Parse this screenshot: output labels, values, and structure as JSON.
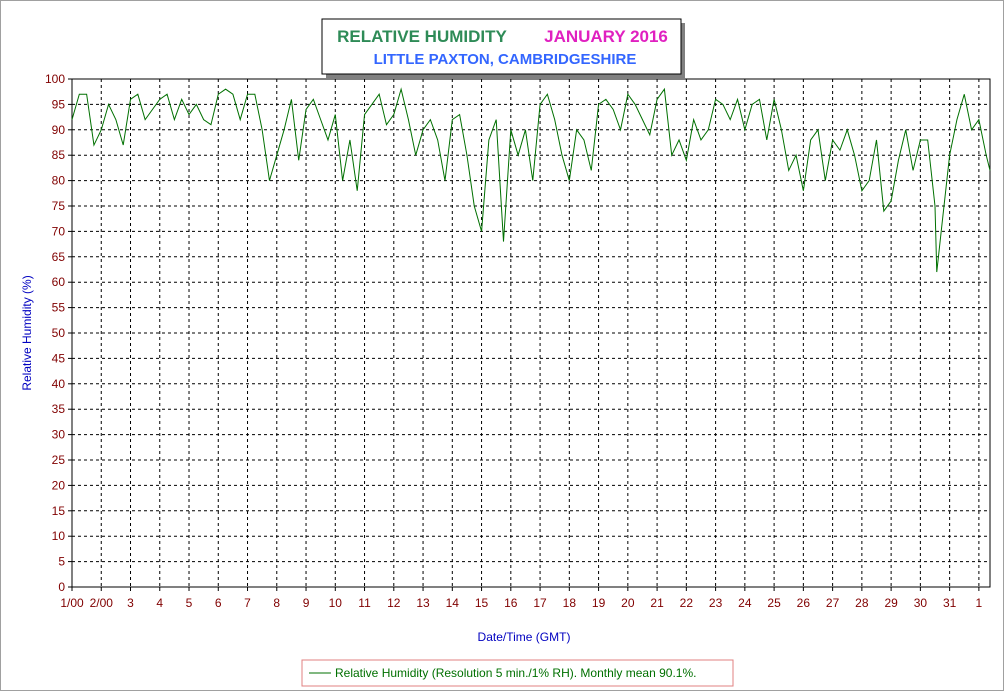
{
  "chart_data": {
    "type": "line",
    "title": "RELATIVE HUMIDITY",
    "title_period": "JANUARY 2016",
    "subtitle": "LITTLE PAXTON, CAMBRIDGESHIRE",
    "x_label": "Date/Time (GMT)",
    "y_label": "Relative Humidity (%)",
    "xlim": [
      1,
      32.38
    ],
    "ylim": [
      0,
      100
    ],
    "yticks": [
      0,
      5,
      10,
      15,
      20,
      25,
      30,
      35,
      40,
      45,
      50,
      55,
      60,
      65,
      70,
      75,
      80,
      85,
      90,
      95,
      100
    ],
    "xticks": [
      {
        "value": 1,
        "label": "1/00"
      },
      {
        "value": 2,
        "label": "2/00"
      },
      3,
      4,
      5,
      6,
      7,
      8,
      9,
      10,
      11,
      12,
      13,
      14,
      15,
      16,
      17,
      18,
      19,
      20,
      21,
      22,
      23,
      24,
      25,
      26,
      27,
      28,
      29,
      30,
      31,
      {
        "value": 32,
        "label": "1"
      }
    ],
    "grid": true,
    "x": [
      1,
      1.25,
      1.5,
      1.75,
      2,
      2.25,
      2.5,
      2.75,
      3,
      3.25,
      3.5,
      3.75,
      4,
      4.25,
      4.5,
      4.75,
      5,
      5.25,
      5.5,
      5.75,
      6,
      6.25,
      6.5,
      6.75,
      7,
      7.25,
      7.5,
      7.75,
      8,
      8.25,
      8.5,
      8.75,
      9,
      9.25,
      9.5,
      9.75,
      10,
      10.25,
      10.5,
      10.75,
      11,
      11.25,
      11.5,
      11.75,
      12,
      12.25,
      12.5,
      12.75,
      13,
      13.25,
      13.5,
      13.75,
      14,
      14.25,
      14.5,
      14.75,
      15,
      15.25,
      15.5,
      15.75,
      16,
      16.25,
      16.5,
      16.75,
      17,
      17.25,
      17.5,
      17.75,
      18,
      18.25,
      18.5,
      18.75,
      19,
      19.25,
      19.5,
      19.75,
      20,
      20.25,
      20.5,
      20.75,
      21,
      21.25,
      21.5,
      21.75,
      22,
      22.25,
      22.5,
      22.75,
      23,
      23.25,
      23.5,
      23.75,
      24,
      24.25,
      24.5,
      24.75,
      25,
      25.25,
      25.5,
      25.75,
      26,
      26.25,
      26.5,
      26.75,
      27,
      27.25,
      27.5,
      27.75,
      28,
      28.25,
      28.5,
      28.75,
      29,
      29.25,
      29.5,
      29.75,
      30,
      30.25,
      30.5,
      30.56,
      30.75,
      31,
      31.25,
      31.5,
      31.75,
      32,
      32.25,
      32.38
    ],
    "series": [
      {
        "name": "Relative Humidity (Resolution 5 min./1% RH). Monthly mean 90.1%.",
        "color": "#007000",
        "values": [
          92,
          97,
          97,
          87,
          90,
          95,
          92,
          87,
          96,
          97,
          92,
          94,
          96,
          97,
          92,
          96,
          93,
          95,
          92,
          91,
          97,
          98,
          97,
          92,
          97,
          97,
          90,
          80,
          85,
          90,
          96,
          84,
          94,
          96,
          92,
          88,
          93,
          80,
          88,
          78,
          93,
          95,
          97,
          91,
          93,
          98,
          92,
          85,
          90,
          92,
          88,
          80,
          92,
          93,
          85,
          75,
          70,
          88,
          92,
          68,
          90,
          85,
          90,
          80,
          95,
          97,
          92,
          85,
          80,
          90,
          88,
          82,
          95,
          96,
          94,
          90,
          97,
          95,
          92,
          89,
          96,
          98,
          85,
          88,
          84,
          92,
          88,
          90,
          96,
          95,
          92,
          96,
          90,
          95,
          96,
          88,
          96,
          90,
          82,
          85,
          78,
          88,
          90,
          80,
          88,
          86,
          90,
          85,
          78,
          80,
          88,
          74,
          76,
          84,
          90,
          82,
          88,
          88,
          75,
          62,
          72,
          85,
          92,
          97,
          90,
          92,
          85,
          82
        ]
      }
    ]
  }
}
